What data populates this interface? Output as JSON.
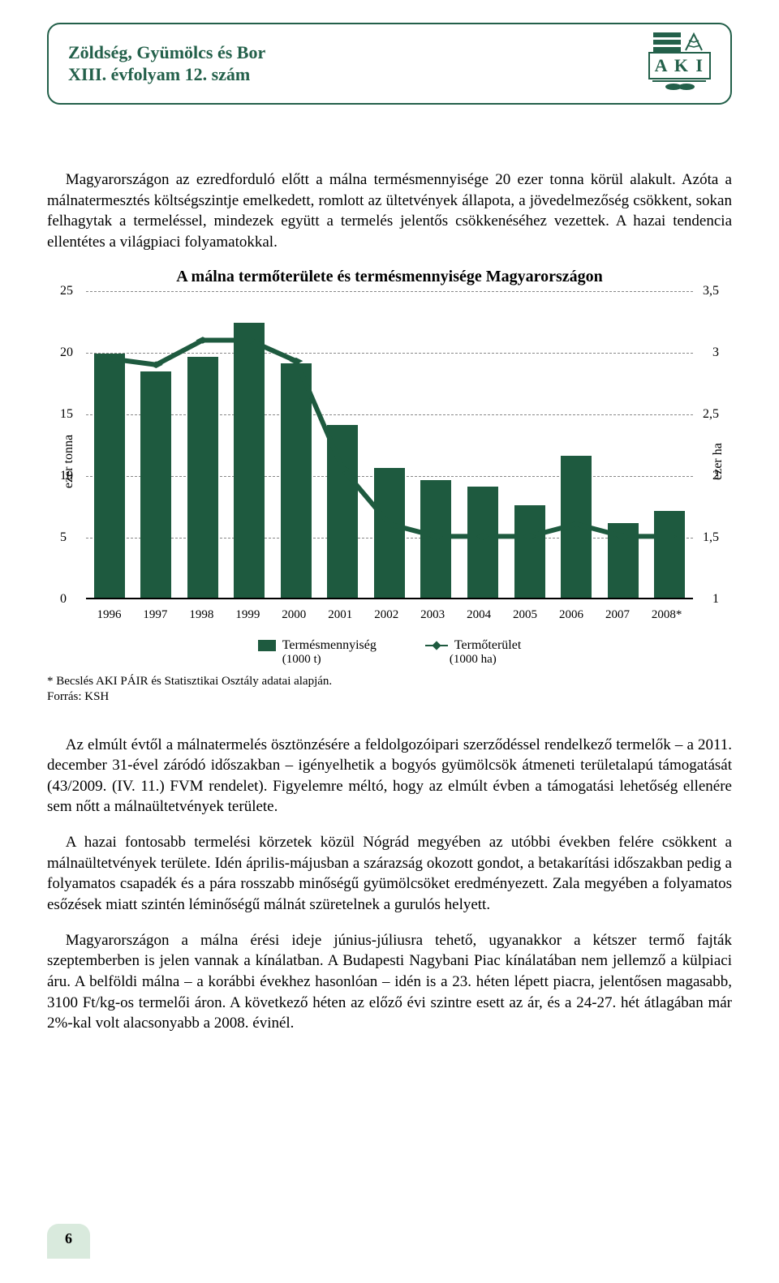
{
  "header": {
    "line1": "Zöldség, Gyümölcs és Bor",
    "line2": "XIII. évfolyam 12. szám",
    "logo_text": "A K I",
    "logo_color": "#23604a"
  },
  "paragraphs": {
    "p1": "Magyarországon az ezredforduló előtt a málna termésmennyisége 20 ezer tonna körül alakult. Azóta a málnatermesztés költségszintje emelkedett, romlott az ültetvények állapota, a jövedelmezőség csökkent, sokan felhagytak a termeléssel, mindezek együtt a termelés jelentős csökkenéséhez vezettek. A hazai tendencia ellentétes a világpiaci folyamatokkal.",
    "p2": "Az elmúlt évtől a málnatermelés ösztönzésére a feldolgozóipari szerződéssel rendelkező termelők – a 2011. december 31-ével záródó időszakban – igényelhetik a bogyós gyümölcsök átmeneti területalapú támogatását (43/2009. (IV. 11.) FVM rendelet). Figyelemre méltó, hogy az elmúlt évben a támogatási lehetőség ellenére sem nőtt a málnaültetvények területe.",
    "p3": "A hazai fontosabb termelési körzetek közül Nógrád megyében az utóbbi években felére csökkent a málnaültetvények területe. Idén április-májusban a szárazság okozott gondot, a betakarítási időszakban pedig a folyamatos csapadék és a pára rosszabb minőségű gyümölcsöket eredményezett. Zala megyében a folyamatos esőzések miatt szintén léminőségű málnát szüretelnek a gurulós helyett.",
    "p4": "Magyarországon a málna érési ideje június-júliusra tehető, ugyanakkor a kétszer termő fajták szeptemberben is jelen vannak a kínálatban. A Budapesti Nagybani Piac kínálatában nem jellemző a külpiaci áru. A belföldi málna – a korábbi évekhez hasonlóan – idén is a 23. héten lépett piacra, jelentősen magasabb, 3100 Ft/kg-os termelői áron. A következő héten az előző évi szintre esett az ár, és a 24-27. hét átlagában már 2%-kal volt alacsonyabb a 2008. évinél."
  },
  "chart": {
    "title": "A málna termőterülete és termésmennyisége Magyarországon",
    "categories": [
      "1996",
      "1997",
      "1998",
      "1999",
      "2000",
      "2001",
      "2002",
      "2003",
      "2004",
      "2005",
      "2006",
      "2007",
      "2008*"
    ],
    "bar_values": [
      19.8,
      18.3,
      19.5,
      22.3,
      19.0,
      14.0,
      10.5,
      9.5,
      9.0,
      7.5,
      11.5,
      6.0,
      7.0
    ],
    "line_values": [
      2.95,
      2.9,
      3.1,
      3.1,
      2.93,
      2.05,
      1.6,
      1.5,
      1.5,
      1.5,
      1.6,
      1.5,
      1.5
    ],
    "y_left": {
      "min": 0,
      "max": 25,
      "step": 5,
      "label": "ezer tonna"
    },
    "y_right": {
      "min": 1,
      "max": 3.5,
      "step": 0.5,
      "label": "ezer ha"
    },
    "bar_color": "#1e5a3f",
    "line_color": "#1e5a3f",
    "grid_color": "#888888",
    "background": "#ffffff",
    "legend": {
      "bar_label": "Termésmennyiség",
      "bar_sub": "(1000 t)",
      "line_label": "Termőterület",
      "line_sub": "(1000 ha)"
    }
  },
  "footnotes": {
    "star": "* Becslés AKI PÁIR és Statisztikai Osztály adatai alapján.",
    "source": "Forrás: KSH"
  },
  "page_number": "6",
  "strip_colors": [
    "#d9eadd",
    "#a2cca7",
    "#6fb07e",
    "#1e5a3f"
  ]
}
